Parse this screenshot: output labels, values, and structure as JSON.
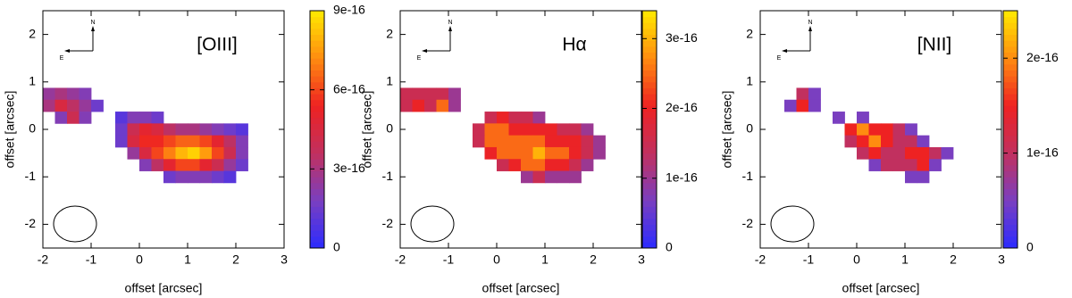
{
  "chart_data": [
    {
      "type": "heatmap",
      "title": "[OIII]",
      "xlabel": "offset [arcsec]",
      "ylabel": "offset [arcsec]",
      "xlim": [
        -2,
        3
      ],
      "ylim": [
        -2.5,
        2.5
      ],
      "xticks": [
        -2,
        -1,
        0,
        1,
        2,
        3
      ],
      "yticks": [
        -2,
        -1,
        0,
        1,
        2
      ],
      "clim": [
        0,
        9e-16
      ],
      "cticks": [
        0,
        3e-16,
        6e-16,
        9e-16
      ],
      "colormap": [
        "#2b2bff",
        "#7a3fc0",
        "#c1305f",
        "#ee2222",
        "#ff8c10",
        "#ffea00"
      ],
      "compass": {
        "north": "N",
        "east": "E"
      },
      "x": [
        -1.875,
        -1.625,
        -1.375,
        -1.125,
        -0.875,
        -0.625,
        -0.375,
        -0.125,
        0.125,
        0.375,
        0.625,
        0.875,
        1.125,
        1.375,
        1.625,
        1.875,
        2.125
      ],
      "y": [
        0.75,
        0.5,
        0.25,
        0,
        -0.25,
        -0.5,
        -0.75,
        -1.0
      ],
      "z": [
        [
          2.5e-16,
          3e-16,
          2.5e-16,
          2e-16,
          null,
          null,
          null,
          null,
          null,
          null,
          null,
          null,
          null,
          null,
          null,
          null,
          null
        ],
        [
          3e-16,
          4.5e-16,
          3.5e-16,
          2.5e-16,
          1.5e-16,
          null,
          null,
          null,
          null,
          null,
          null,
          null,
          null,
          null,
          null,
          null,
          null
        ],
        [
          null,
          2e-16,
          4e-16,
          2e-16,
          null,
          null,
          1e-16,
          2e-16,
          2e-16,
          1.5e-16,
          null,
          null,
          null,
          null,
          null,
          null,
          null
        ],
        [
          null,
          null,
          null,
          null,
          null,
          null,
          1.5e-16,
          4e-16,
          5e-16,
          4.5e-16,
          3.5e-16,
          3e-16,
          3e-16,
          2.5e-16,
          2e-16,
          1.5e-16,
          1e-16
        ],
        [
          null,
          null,
          null,
          null,
          null,
          null,
          1.5e-16,
          4.5e-16,
          5.5e-16,
          5.5e-16,
          6e-16,
          6.5e-16,
          6.5e-16,
          6e-16,
          5e-16,
          3.5e-16,
          2e-16
        ],
        [
          null,
          null,
          null,
          null,
          null,
          null,
          null,
          2.5e-16,
          4.5e-16,
          6e-16,
          7e-16,
          8e-16,
          8.5e-16,
          7.5e-16,
          6e-16,
          4e-16,
          2e-16
        ],
        [
          null,
          null,
          null,
          null,
          null,
          null,
          null,
          null,
          2e-16,
          3.5e-16,
          5e-16,
          6e-16,
          6e-16,
          5e-16,
          4e-16,
          2.5e-16,
          1.5e-16
        ],
        [
          null,
          null,
          null,
          null,
          null,
          null,
          null,
          null,
          null,
          null,
          1.5e-16,
          2e-16,
          2e-16,
          2e-16,
          1.5e-16,
          1e-16,
          null
        ]
      ]
    },
    {
      "type": "heatmap",
      "title": "Hα",
      "xlabel": "offset [arcsec]",
      "ylabel": "offset [arcsec]",
      "xlim": [
        -2,
        3
      ],
      "ylim": [
        -2.5,
        2.5
      ],
      "xticks": [
        -2,
        -1,
        0,
        1,
        2,
        3
      ],
      "yticks": [
        -2,
        -1,
        0,
        1,
        2
      ],
      "clim": [
        0,
        3.4e-16
      ],
      "cticks": [
        0,
        1e-16,
        2e-16,
        3e-16
      ],
      "colormap": [
        "#2b2bff",
        "#7a3fc0",
        "#c1305f",
        "#ee2222",
        "#ff8c10",
        "#ffea00"
      ],
      "compass": {
        "north": "N",
        "east": "E"
      },
      "x": [
        -1.875,
        -1.625,
        -1.375,
        -1.125,
        -0.875,
        -0.625,
        -0.375,
        -0.125,
        0.125,
        0.375,
        0.625,
        0.875,
        1.125,
        1.375,
        1.625,
        1.875,
        2.125
      ],
      "y": [
        0.75,
        0.5,
        0.25,
        0,
        -0.25,
        -0.5,
        -0.75,
        -1.0
      ],
      "z": [
        [
          1.5e-16,
          1.5e-16,
          1.5e-16,
          1.5e-16,
          1e-16,
          null,
          null,
          null,
          null,
          null,
          null,
          null,
          null,
          null,
          null,
          null,
          null
        ],
        [
          1.5e-16,
          2e-16,
          1.5e-16,
          2.5e-16,
          1e-16,
          null,
          null,
          null,
          null,
          null,
          null,
          null,
          null,
          null,
          null,
          null,
          null
        ],
        [
          null,
          null,
          null,
          null,
          null,
          null,
          null,
          1.5e-16,
          2e-16,
          1.5e-16,
          1.5e-16,
          1e-16,
          null,
          null,
          null,
          null,
          null
        ],
        [
          null,
          null,
          null,
          null,
          null,
          null,
          1.5e-16,
          2.5e-16,
          2.5e-16,
          2e-16,
          2e-16,
          2e-16,
          2e-16,
          1.5e-16,
          1.5e-16,
          1e-16,
          null
        ],
        [
          null,
          null,
          null,
          null,
          null,
          null,
          1.5e-16,
          2.5e-16,
          2.5e-16,
          2.5e-16,
          2.5e-16,
          2.5e-16,
          2e-16,
          2e-16,
          2e-16,
          1.5e-16,
          1e-16
        ],
        [
          null,
          null,
          null,
          null,
          null,
          null,
          null,
          2e-16,
          2.5e-16,
          2.5e-16,
          2.5e-16,
          3e-16,
          2.5e-16,
          2.5e-16,
          2e-16,
          1.5e-16,
          1e-16
        ],
        [
          null,
          null,
          null,
          null,
          null,
          null,
          null,
          null,
          1.5e-16,
          2e-16,
          2.5e-16,
          2.5e-16,
          2e-16,
          2e-16,
          1.5e-16,
          1e-16,
          null
        ],
        [
          null,
          null,
          null,
          null,
          null,
          null,
          null,
          null,
          null,
          null,
          1e-16,
          1.5e-16,
          1e-16,
          1e-16,
          1e-16,
          null,
          null
        ]
      ]
    },
    {
      "type": "heatmap",
      "title": "[NII]",
      "xlabel": "offset [arcsec]",
      "ylabel": "offset [arcsec]",
      "xlim": [
        -2,
        3
      ],
      "ylim": [
        -2.5,
        2.5
      ],
      "xticks": [
        -2,
        -1,
        0,
        1,
        2,
        3
      ],
      "yticks": [
        -2,
        -1,
        0,
        1,
        2
      ],
      "clim": [
        0,
        2.5e-16
      ],
      "cticks": [
        0,
        1e-16,
        2e-16
      ],
      "colormap": [
        "#2b2bff",
        "#7a3fc0",
        "#c1305f",
        "#ee2222",
        "#ff8c10",
        "#ffea00"
      ],
      "compass": {
        "north": "N",
        "east": "E"
      },
      "x": [
        -1.875,
        -1.625,
        -1.375,
        -1.125,
        -0.875,
        -0.625,
        -0.375,
        -0.125,
        0.125,
        0.375,
        0.625,
        0.875,
        1.125,
        1.375,
        1.625,
        1.875,
        2.125
      ],
      "y": [
        0.75,
        0.5,
        0.25,
        0,
        -0.25,
        -0.5,
        -0.75,
        -1.0
      ],
      "z": [
        [
          null,
          null,
          null,
          1e-16,
          5e-17,
          null,
          null,
          null,
          null,
          null,
          null,
          null,
          null,
          null,
          null,
          null,
          null
        ],
        [
          null,
          null,
          5e-17,
          1.5e-16,
          5e-17,
          null,
          null,
          null,
          null,
          null,
          null,
          null,
          null,
          null,
          null,
          null,
          null
        ],
        [
          null,
          null,
          null,
          null,
          null,
          null,
          5e-17,
          null,
          5e-17,
          null,
          null,
          null,
          null,
          null,
          null,
          null,
          null
        ],
        [
          null,
          null,
          null,
          null,
          null,
          null,
          null,
          1.5e-16,
          2e-16,
          1.5e-16,
          1.5e-16,
          1e-16,
          5e-17,
          null,
          null,
          null,
          null
        ],
        [
          null,
          null,
          null,
          null,
          null,
          null,
          null,
          1e-16,
          1.5e-16,
          2e-16,
          1.5e-16,
          1e-16,
          1e-16,
          5e-17,
          null,
          null,
          null
        ],
        [
          null,
          null,
          null,
          null,
          null,
          null,
          null,
          null,
          1e-16,
          1.5e-16,
          1e-16,
          1e-16,
          1.5e-16,
          1.5e-16,
          1e-16,
          5e-17,
          null
        ],
        [
          null,
          null,
          null,
          null,
          null,
          null,
          null,
          null,
          null,
          5e-17,
          1e-16,
          1e-16,
          1e-16,
          1.5e-16,
          5e-17,
          null,
          null
        ],
        [
          null,
          null,
          null,
          null,
          null,
          null,
          null,
          null,
          null,
          null,
          null,
          null,
          5e-17,
          5e-17,
          null,
          null,
          null
        ]
      ]
    }
  ]
}
